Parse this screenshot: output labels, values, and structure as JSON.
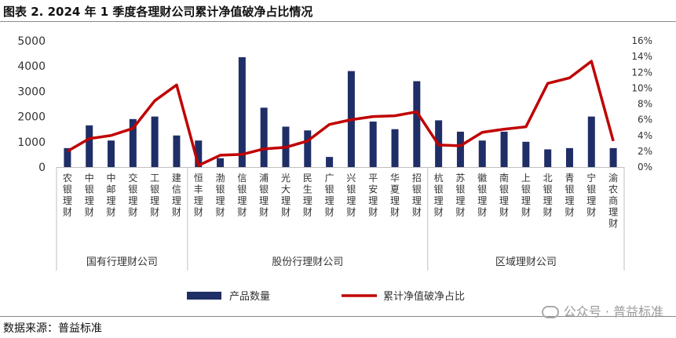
{
  "title": "图表 2. 2024 年 1 季度各理财公司累计净值破净占比情况",
  "source": "数据来源：普益标准",
  "watermark": "公众号 · 普益标准",
  "chart_data": {
    "type": "bar",
    "title": "",
    "categories": [
      "农银理财",
      "中银理财",
      "中邮理财",
      "交银理财",
      "工银理财",
      "建信理财",
      "恒丰理财",
      "渤银理财",
      "信银理财",
      "浦银理财",
      "光大理财",
      "民生理财",
      "广银理财",
      "兴银理财",
      "平安理财",
      "华夏理财",
      "招银理财",
      "杭银理财",
      "苏银理财",
      "徽银理财",
      "南银理财",
      "上银理财",
      "北银理财",
      "青银理财",
      "宁银理财",
      "渝农商理财"
    ],
    "groups": [
      {
        "name": "国有行理财公司",
        "count": 6
      },
      {
        "name": "股份行理财公司",
        "count": 11
      },
      {
        "name": "区域理财公司",
        "count": 9
      }
    ],
    "series": [
      {
        "name": "产品数量",
        "type": "bar",
        "axis": "left",
        "color": "#1f2e66",
        "values": [
          750,
          1650,
          1050,
          1900,
          2000,
          1250,
          1050,
          350,
          4350,
          2350,
          1600,
          1450,
          400,
          3800,
          1800,
          1500,
          3400,
          1850,
          1400,
          1050,
          1400,
          1000,
          700,
          750,
          2000,
          750
        ]
      },
      {
        "name": "累计净值破净占比",
        "type": "line",
        "axis": "right",
        "color": "#c00000",
        "values": [
          2.0,
          3.6,
          4.0,
          4.9,
          8.4,
          10.4,
          0.2,
          1.5,
          1.6,
          2.3,
          2.5,
          3.3,
          5.4,
          6.0,
          6.4,
          6.5,
          7.0,
          2.8,
          2.7,
          4.4,
          4.8,
          5.1,
          10.6,
          11.3,
          13.4,
          3.3
        ]
      }
    ],
    "y_left": {
      "min": 0,
      "max": 5000,
      "ticks": [
        "0",
        "1000",
        "2000",
        "3000",
        "4000",
        "5000"
      ]
    },
    "y_right": {
      "min": 0,
      "max": 16,
      "ticks": [
        "0%",
        "2%",
        "4%",
        "6%",
        "8%",
        "10%",
        "12%",
        "14%",
        "16%"
      ]
    },
    "grid": false,
    "legend": "bottom-center",
    "legend_items": [
      "产品数量",
      "累计净值破净占比"
    ]
  }
}
